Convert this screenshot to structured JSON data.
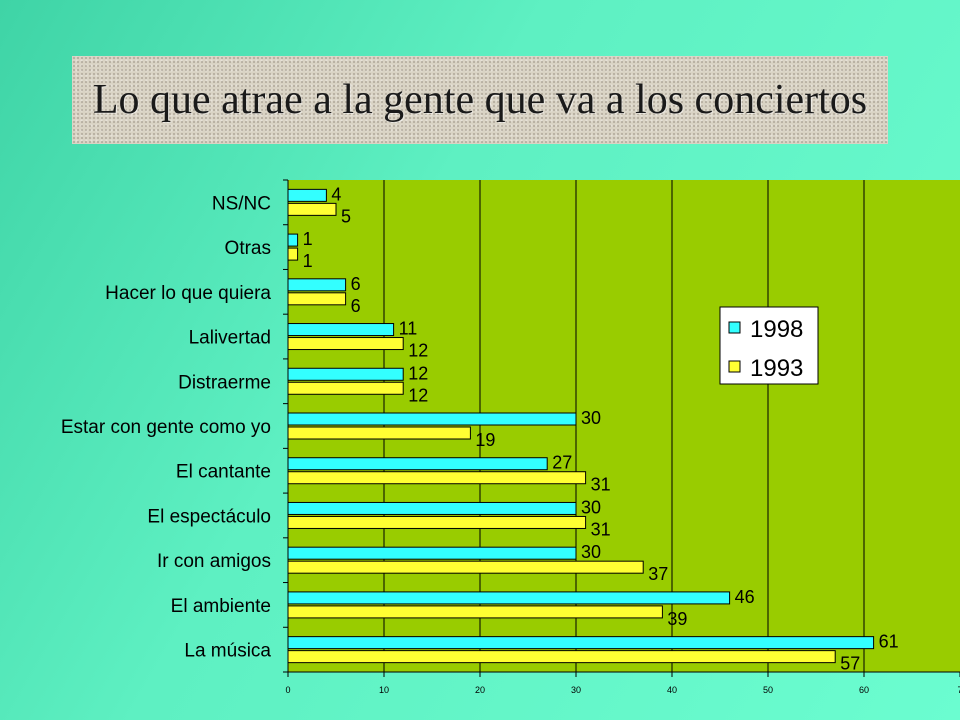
{
  "title": "Lo que atrae a la gente que va a los conciertos",
  "colors": {
    "plot_bg": "#99cc00",
    "series_1998": "#33ffff",
    "series_1993": "#ffff33"
  },
  "chart_data": {
    "type": "bar",
    "orientation": "horizontal",
    "categories": [
      "NS/NC",
      "Otras",
      "Hacer lo que quiera",
      "Lalivertad",
      "Distraerme",
      "Estar con gente como yo",
      "El cantante",
      "El espectáculo",
      "Ir con amigos",
      "El ambiente",
      "La música"
    ],
    "series": [
      {
        "name": "1998",
        "values": [
          4,
          1,
          6,
          11,
          12,
          30,
          27,
          30,
          30,
          46,
          61
        ]
      },
      {
        "name": "1993",
        "values": [
          5,
          1,
          6,
          12,
          12,
          19,
          31,
          31,
          37,
          39,
          57
        ]
      }
    ],
    "xlim": [
      0,
      70
    ],
    "xticks": [
      "0",
      "10",
      "20",
      "30",
      "40",
      "50",
      "60",
      "7"
    ],
    "grid": true,
    "legend": "right"
  }
}
